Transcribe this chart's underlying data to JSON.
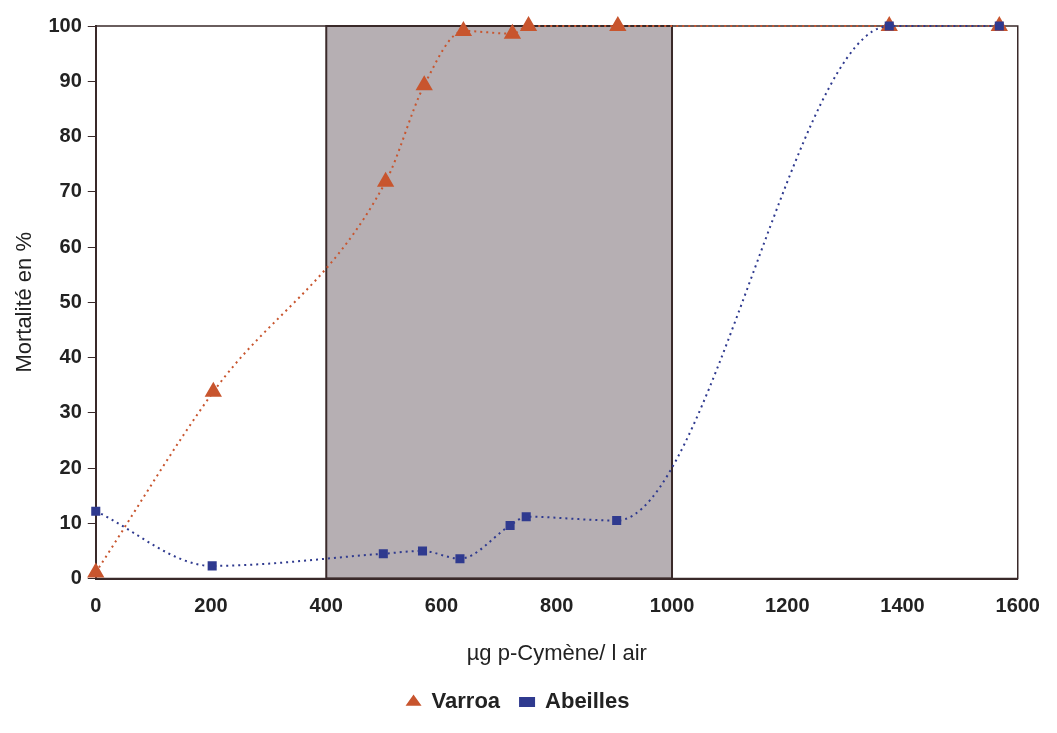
{
  "chart_data": {
    "type": "line",
    "xlabel": "µg p-Cymène/ l air",
    "ylabel": "Mortalité en %",
    "xlim": [
      0,
      1600
    ],
    "xticks": [
      0,
      200,
      400,
      600,
      800,
      1000,
      1200,
      1400,
      1600
    ],
    "ylim": [
      0,
      100
    ],
    "yticks": [
      0,
      10,
      20,
      30,
      40,
      50,
      60,
      70,
      80,
      90,
      100
    ],
    "grid": false,
    "legend": "bottom",
    "line_style": "dotted",
    "bands": [
      {
        "axis": "x",
        "from": 400,
        "to": 1000,
        "color": "#b6afb3"
      }
    ],
    "series": [
      {
        "name": "Varroa",
        "color": "#c8552e",
        "marker": "triangle",
        "x": [
          0,
          204,
          503,
          570,
          638,
          723,
          751,
          906,
          1377,
          1568
        ],
        "values": [
          1.1,
          33.8,
          71.8,
          89.3,
          99.1,
          98.6,
          100,
          100,
          100,
          100
        ]
      },
      {
        "name": "Abeilles",
        "color": "#2f3a8f",
        "marker": "square",
        "x": [
          0,
          202,
          499,
          567,
          632,
          719,
          747,
          904,
          1377,
          1568
        ],
        "values": [
          12.2,
          2.3,
          4.5,
          5.0,
          3.6,
          9.6,
          11.2,
          10.5,
          100,
          100
        ]
      }
    ]
  }
}
